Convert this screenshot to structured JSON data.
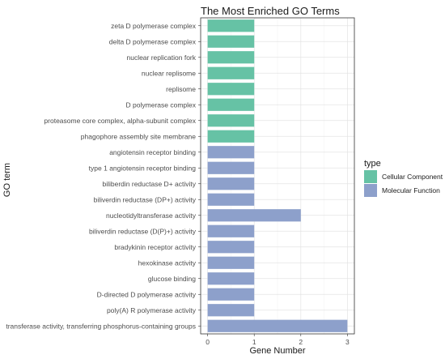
{
  "chart_data": {
    "type": "bar",
    "orientation": "horizontal",
    "title": "The Most Enriched GO Terms",
    "xlabel": "Gene Number",
    "ylabel": "GO term",
    "xlim": [
      0,
      3
    ],
    "xticks": [
      "0",
      "1",
      "2",
      "3"
    ],
    "grid": true,
    "legend_title": "type",
    "legend_position": "right",
    "series": [
      {
        "name": "Cellular Component",
        "color": "#66c2a5"
      },
      {
        "name": "Molecular Function",
        "color": "#8da0cb"
      }
    ],
    "bars": [
      {
        "term": "zeta D polymerase complex",
        "value": 1,
        "type": "Cellular Component"
      },
      {
        "term": "delta D polymerase complex",
        "value": 1,
        "type": "Cellular Component"
      },
      {
        "term": "nuclear replication fork",
        "value": 1,
        "type": "Cellular Component"
      },
      {
        "term": "nuclear replisome",
        "value": 1,
        "type": "Cellular Component"
      },
      {
        "term": "replisome",
        "value": 1,
        "type": "Cellular Component"
      },
      {
        "term": "D polymerase complex",
        "value": 1,
        "type": "Cellular Component"
      },
      {
        "term": "proteasome core complex, alpha-subunit complex",
        "value": 1,
        "type": "Cellular Component"
      },
      {
        "term": "phagophore assembly site membrane",
        "value": 1,
        "type": "Cellular Component"
      },
      {
        "term": "angiotensin receptor binding",
        "value": 1,
        "type": "Molecular Function"
      },
      {
        "term": "type 1 angiotensin receptor binding",
        "value": 1,
        "type": "Molecular Function"
      },
      {
        "term": "biliberdin reductase D+ activity",
        "value": 1,
        "type": "Molecular Function"
      },
      {
        "term": "biliverdin reductase (DP+) activity",
        "value": 1,
        "type": "Molecular Function"
      },
      {
        "term": "nucleotidyltransferase activity",
        "value": 2,
        "type": "Molecular Function"
      },
      {
        "term": "biliverdin reductase (D(P)+) activity",
        "value": 1,
        "type": "Molecular Function"
      },
      {
        "term": "bradykinin receptor activity",
        "value": 1,
        "type": "Molecular Function"
      },
      {
        "term": "hexokinase activity",
        "value": 1,
        "type": "Molecular Function"
      },
      {
        "term": "glucose binding",
        "value": 1,
        "type": "Molecular Function"
      },
      {
        "term": "D-directed D polymerase activity",
        "value": 1,
        "type": "Molecular Function"
      },
      {
        "term": "poly(A) R polymerase activity",
        "value": 1,
        "type": "Molecular Function"
      },
      {
        "term": "transferase activity, transferring phosphorus-containing groups",
        "value": 3,
        "type": "Molecular Function"
      }
    ]
  }
}
